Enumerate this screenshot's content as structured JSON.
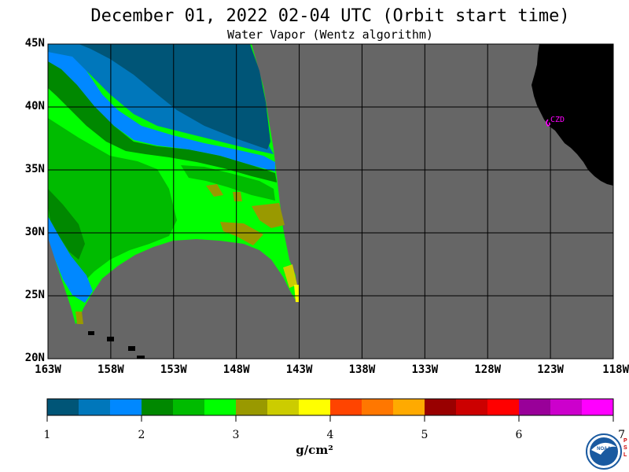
{
  "header": {
    "title": "December 01, 2022  02-04 UTC  (Orbit start time)",
    "subtitle": "Water Vapor (Wentz algorithm)"
  },
  "map": {
    "lat_labels": [
      "45N",
      "40N",
      "35N",
      "30N",
      "25N",
      "20N"
    ],
    "lon_labels": [
      "163W",
      "158W",
      "153W",
      "148W",
      "143W",
      "138W",
      "133W",
      "128W",
      "123W",
      "118W"
    ],
    "station_label": "CZD",
    "colors": {
      "no_data": "#666666",
      "land": "#000000",
      "station": "#ff00ff"
    }
  },
  "colorbar": {
    "colors": [
      "#005577",
      "#0077bb",
      "#0088ff",
      "#008800",
      "#00bb00",
      "#00ff00",
      "#999900",
      "#cccc00",
      "#ffff00",
      "#ff4400",
      "#ff7700",
      "#ffaa00",
      "#990000",
      "#cc0000",
      "#ff0000",
      "#990099",
      "#cc00cc",
      "#ff00ff"
    ],
    "ticks": [
      "1",
      "2",
      "3",
      "4",
      "5",
      "6",
      "7"
    ],
    "unit": "g/cm²"
  },
  "logo": {
    "name": "NOAA",
    "side_text": "PSL"
  }
}
